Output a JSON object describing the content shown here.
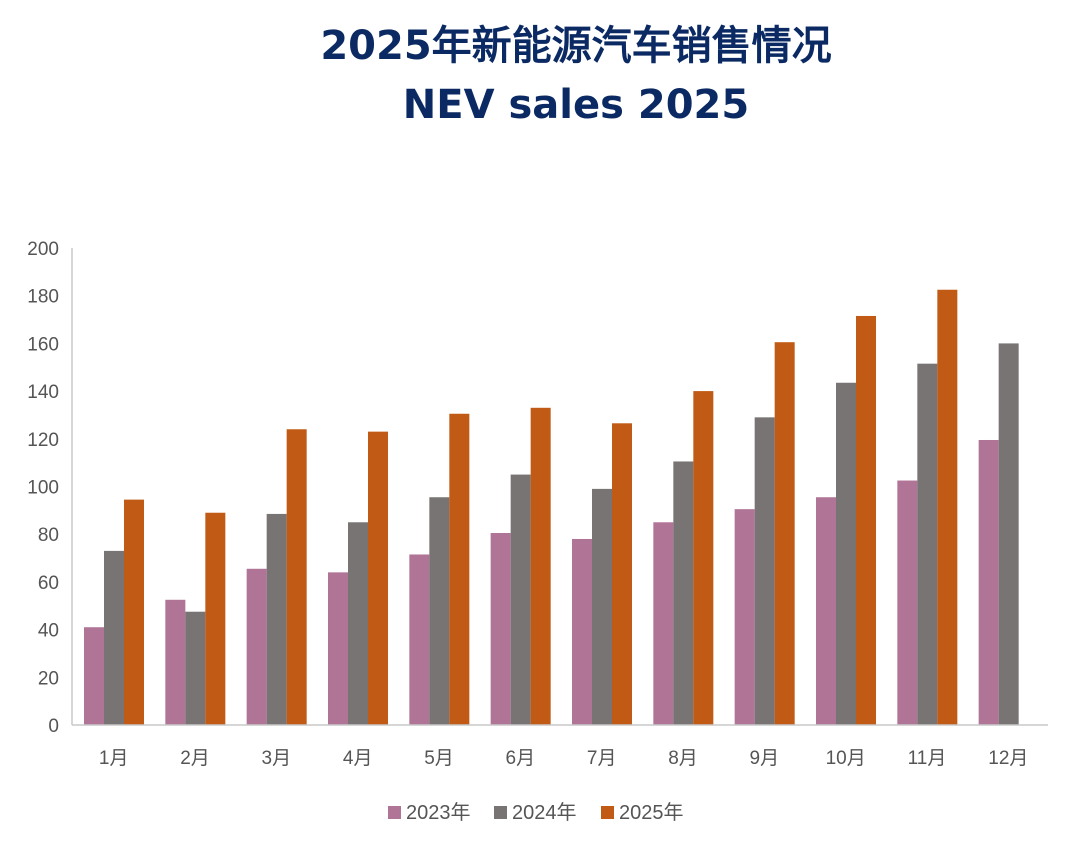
{
  "chart_data": {
    "type": "bar",
    "title": "2025年新能源汽车销售情况",
    "subtitle": "NEV sales 2025",
    "xlabel": "",
    "ylabel": "",
    "ylim": [
      0,
      200
    ],
    "yticks": [
      0,
      20,
      40,
      60,
      80,
      100,
      120,
      140,
      160,
      180,
      200
    ],
    "grid": false,
    "legend_position": "bottom",
    "categories": [
      "1月",
      "2月",
      "3月",
      "4月",
      "5月",
      "6月",
      "7月",
      "8月",
      "9月",
      "10月",
      "11月",
      "12月"
    ],
    "series": [
      {
        "name": "2023年",
        "color": "#b07497",
        "values": [
          41,
          52.5,
          65.5,
          64,
          71.5,
          80.5,
          78,
          85,
          90.5,
          95.5,
          102.5,
          119.5
        ]
      },
      {
        "name": "2024年",
        "color": "#787474",
        "values": [
          73,
          47.5,
          88.5,
          85,
          95.5,
          105,
          99,
          110.5,
          129,
          143.5,
          151.5,
          160
        ]
      },
      {
        "name": "2025年",
        "color": "#c05a14",
        "values": [
          94.5,
          89,
          124,
          123,
          130.5,
          133,
          126.5,
          140,
          160.5,
          171.5,
          182.5,
          null
        ]
      }
    ]
  }
}
